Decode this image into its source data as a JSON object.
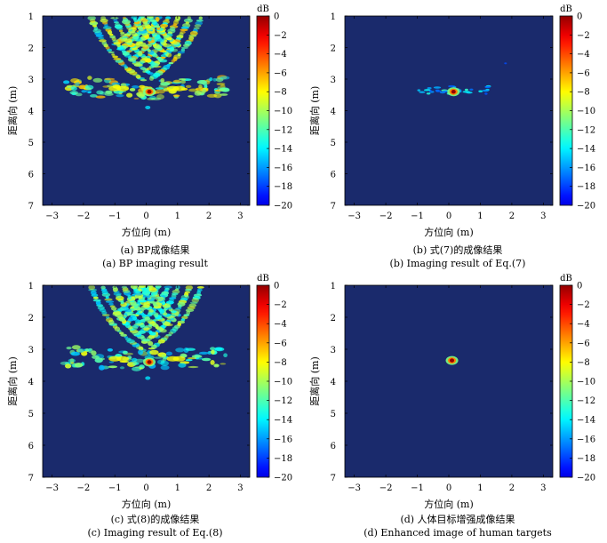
{
  "figure": {
    "colormap": "jet",
    "colorbar_unit": "dB",
    "background_color": "#1a2a6c"
  },
  "chart_data": [
    {
      "type": "heatmap",
      "id": "a",
      "xlabel": "方位向 (m)",
      "ylabel": "距离向 (m)",
      "xlim": [
        -3.3,
        3.3
      ],
      "ylim": [
        1,
        7
      ],
      "xticks": [
        -3,
        -2,
        -1,
        0,
        1,
        2,
        3
      ],
      "yticks": [
        1,
        2,
        3,
        4,
        5,
        6,
        7
      ],
      "y_inverted": true,
      "colorbar": {
        "label": "dB",
        "range": [
          -20,
          0
        ],
        "ticks": [
          0,
          -2,
          -4,
          -6,
          -8,
          -10,
          -12,
          -14,
          -16,
          -18,
          -20
        ]
      },
      "caption_cn": "(a) BP成像结果",
      "caption_en": "(a) BP imaging result",
      "pattern": "arcs",
      "target": {
        "x": 0.1,
        "y": 3.4,
        "peak_db": 0
      },
      "arc_strength": 0.9
    },
    {
      "type": "heatmap",
      "id": "b",
      "xlabel": "方位向 (m)",
      "ylabel": "距离向 (m)",
      "xlim": [
        -3.3,
        3.3
      ],
      "ylim": [
        1,
        7
      ],
      "xticks": [
        -3,
        -2,
        -1,
        0,
        1,
        2,
        3
      ],
      "yticks": [
        1,
        2,
        3,
        4,
        5,
        6,
        7
      ],
      "y_inverted": true,
      "colorbar": {
        "label": "dB",
        "range": [
          -20,
          0
        ],
        "ticks": [
          0,
          -2,
          -4,
          -6,
          -8,
          -10,
          -12,
          -14,
          -16,
          -18,
          -20
        ]
      },
      "caption_cn": "(b) 式(7)的成像结果",
      "caption_en": "(b) Imaging result of Eq.(7)",
      "pattern": "streak",
      "target": {
        "x": 0.15,
        "y": 3.4,
        "peak_db": 0
      }
    },
    {
      "type": "heatmap",
      "id": "c",
      "xlabel": "方位向 (m)",
      "ylabel": "距离向 (m)",
      "xlim": [
        -3.3,
        3.3
      ],
      "ylim": [
        1,
        7
      ],
      "xticks": [
        -3,
        -2,
        -1,
        0,
        1,
        2,
        3
      ],
      "yticks": [
        1,
        2,
        3,
        4,
        5,
        6,
        7
      ],
      "y_inverted": true,
      "colorbar": {
        "label": "dB",
        "range": [
          -20,
          0
        ],
        "ticks": [
          0,
          -2,
          -4,
          -6,
          -8,
          -10,
          -12,
          -14,
          -16,
          -18,
          -20
        ]
      },
      "caption_cn": "(c) 式(8)的成像结果",
      "caption_en": "(c) Imaging result of Eq.(8)",
      "pattern": "arcs",
      "target": {
        "x": 0.1,
        "y": 3.4,
        "peak_db": 0
      },
      "arc_strength": 0.7
    },
    {
      "type": "heatmap",
      "id": "d",
      "xlabel": "方位向 (m)",
      "ylabel": "距离向 (m)",
      "xlim": [
        -3.3,
        3.3
      ],
      "ylim": [
        1,
        7
      ],
      "xticks": [
        -3,
        -2,
        -1,
        0,
        1,
        2,
        3
      ],
      "yticks": [
        1,
        2,
        3,
        4,
        5,
        6,
        7
      ],
      "y_inverted": true,
      "colorbar": {
        "label": "dB",
        "range": [
          -20,
          0
        ],
        "ticks": [
          0,
          -2,
          -4,
          -6,
          -8,
          -10,
          -12,
          -14,
          -16,
          -18,
          -20
        ]
      },
      "caption_cn": "(d) 人体目标增强成像结果",
      "caption_en": "(d) Enhanced image of human targets",
      "pattern": "point",
      "target": {
        "x": 0.1,
        "y": 3.35,
        "peak_db": 0
      }
    }
  ]
}
